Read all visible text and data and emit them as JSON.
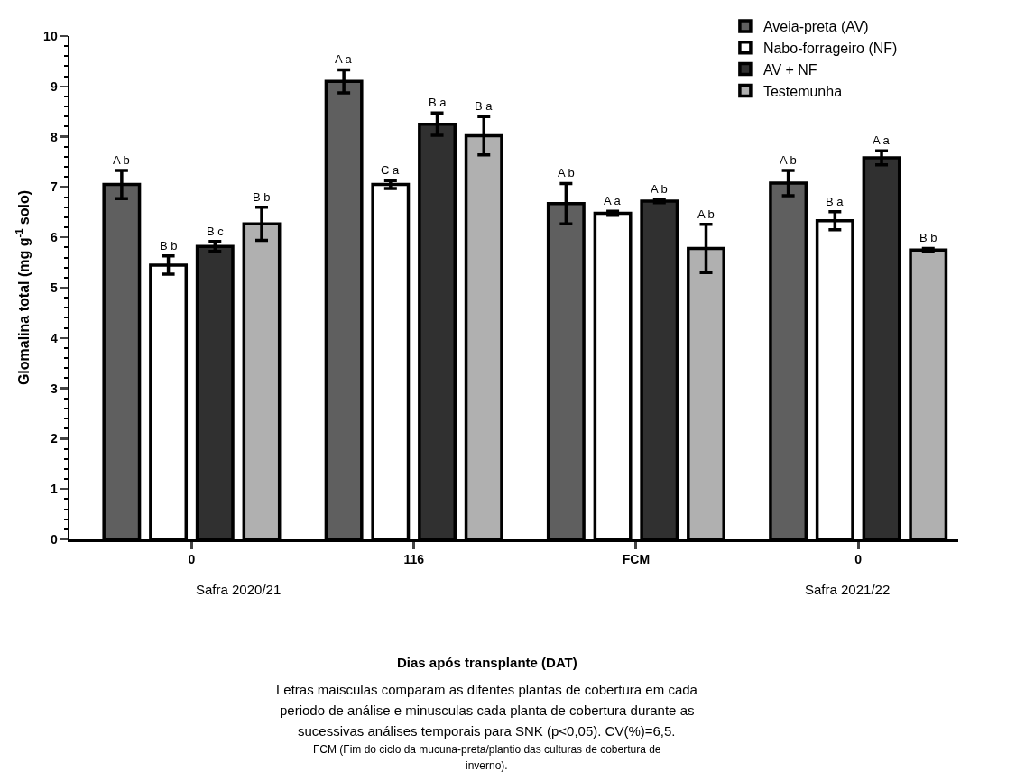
{
  "chart_data": {
    "type": "bar",
    "categories": [
      "0",
      "116",
      "FCM",
      "0"
    ],
    "ylabel": "Glomalina total (mg g$^{-1}$ solo)",
    "ylim": [
      0,
      10
    ],
    "yticks": [
      0,
      1,
      2,
      3,
      4,
      5,
      6,
      7,
      8,
      9,
      10
    ],
    "grid": false,
    "legend": "top right",
    "series": [
      {
        "name": "Aveia-preta (AV)",
        "color": "#5f5f5f",
        "values": [
          7.05,
          9.1,
          6.67,
          7.08
        ],
        "errors": [
          0.28,
          0.23,
          0.4,
          0.25
        ],
        "value_labels": [
          "A b",
          "A a",
          "A b",
          "A b"
        ]
      },
      {
        "name": "Nabo-forrageiro (NF)",
        "color": "#ffffff",
        "values": [
          5.45,
          7.05,
          6.48,
          6.33
        ],
        "errors": [
          0.18,
          0.08,
          0.04,
          0.18
        ],
        "value_labels": [
          "B b",
          "C a",
          "A a",
          "B a"
        ]
      },
      {
        "name": "AV + NF",
        "color": "#303030",
        "values": [
          5.82,
          8.25,
          6.72,
          7.58
        ],
        "errors": [
          0.1,
          0.22,
          0.03,
          0.14
        ],
        "value_labels": [
          "B c",
          "B a",
          "A b",
          "A a"
        ]
      },
      {
        "name": "Testemunha",
        "color": "#b0b0b0",
        "values": [
          6.27,
          8.02,
          5.78,
          5.75
        ],
        "errors": [
          0.33,
          0.38,
          0.48,
          0.03
        ],
        "value_labels": [
          "B b",
          "B a",
          "A b",
          "B b"
        ]
      }
    ],
    "annotations": [
      "Safra 2020/21",
      "Safra 2021/22",
      "Dias após transplante (DAT)",
      "Letras maisculas comparam as difentes plantas de cobertura em cada",
      "periodo de análise e minusculas cada planta de cobertura durante as",
      "sucessivas análises temporais para SNK (p<0,05). CV(%)=6,5.",
      "FCM (Fim do ciclo da mucuna-preta/plantio das culturas de cobertura de",
      "inverno)."
    ]
  }
}
